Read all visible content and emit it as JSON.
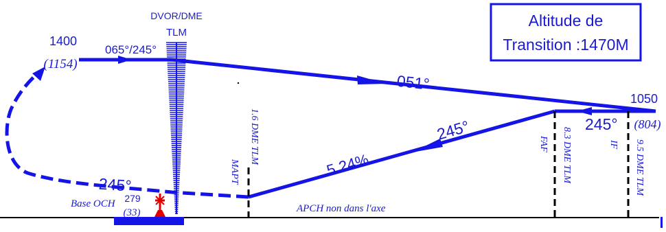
{
  "colors": {
    "track": "#1414e6",
    "text": "#1a1ad0",
    "dark": "#000000",
    "obstacle": "#e00000",
    "background": "#ffffff"
  },
  "transition_box": {
    "line1": "Altitude de",
    "line2": "Transition :1470M"
  },
  "navaid": {
    "type": "DVOR/DME",
    "ident": "TLM",
    "icon": "dvor-dme-icon"
  },
  "left_fix": {
    "altitude": "1400",
    "height": "(1154)",
    "radials": "065°/245°"
  },
  "right_fix": {
    "altitude": "1050",
    "height": "(804)"
  },
  "tracks": {
    "outbound": "051°",
    "inbound_upper": "245°",
    "inbound_lower": "245°",
    "return": "245°"
  },
  "gradient": "5.24%",
  "fixes": {
    "mapt_label": "MAPT",
    "mapt_dme": "1.6 DME TLM",
    "faf_label": "FAF",
    "faf_dme": "8.3 DME TLM",
    "if_label": "IF",
    "if_dme": "9.5 DME TLM"
  },
  "base_och": {
    "label": "Base OCH",
    "value": "279",
    "height": "(33)"
  },
  "apch_note": "APCH non dans l'axe",
  "obstacle_icon": "obstacle-icon"
}
